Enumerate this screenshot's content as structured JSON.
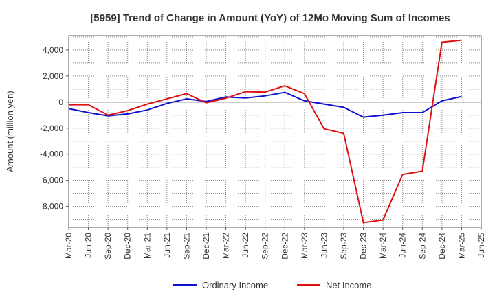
{
  "chart_data": {
    "type": "line",
    "title": "[5959]  Trend of Change in Amount (YoY) of 12Mo Moving Sum of Incomes",
    "xlabel": "",
    "ylabel": "Amount (million yen)",
    "ylim": [
      -9600,
      5100
    ],
    "yticks": [
      4000,
      2000,
      0,
      -2000,
      -4000,
      -6000,
      -8000
    ],
    "ytick_labels": [
      "4,000",
      "2,000",
      "0",
      "-2,000",
      "-4,000",
      "-6,000",
      "-8,000"
    ],
    "x": [
      "Mar-20",
      "Jun-20",
      "Sep-20",
      "Dec-20",
      "Mar-21",
      "Jun-21",
      "Sep-21",
      "Dec-21",
      "Mar-22",
      "Jun-22",
      "Sep-22",
      "Dec-22",
      "Mar-23",
      "Jun-23",
      "Sep-23",
      "Dec-23",
      "Mar-24",
      "Jun-24",
      "Sep-24",
      "Dec-24",
      "Mar-25",
      "Jun-25"
    ],
    "grid": true,
    "legend_position": "bottom-center",
    "series": [
      {
        "name": "Ordinary Income",
        "color": "#1010d0",
        "values": [
          -500,
          -800,
          -1050,
          -900,
          -600,
          -100,
          250,
          50,
          400,
          320,
          480,
          750,
          100,
          -150,
          -400,
          -1150,
          -1000,
          -800,
          -800,
          100,
          430,
          null
        ]
      },
      {
        "name": "Net Income",
        "color": "#dd1111",
        "values": [
          -200,
          -200,
          -1000,
          -650,
          -150,
          250,
          650,
          -50,
          300,
          800,
          770,
          1250,
          650,
          -2050,
          -2400,
          -9250,
          -9050,
          -5550,
          -5300,
          4600,
          4750,
          null
        ]
      }
    ]
  }
}
